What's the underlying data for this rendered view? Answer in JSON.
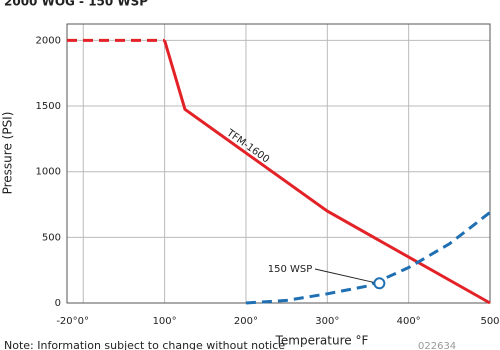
{
  "chart_data": {
    "type": "line",
    "title": "2000 WOG - 150 WSP",
    "xlabel": "Temperature °F",
    "ylabel": "Pressure (PSI)",
    "xlim": [
      -20,
      500
    ],
    "ylim": [
      0,
      2125
    ],
    "xticks": [
      {
        "value": -20,
        "label": "-20°"
      },
      {
        "value": 0,
        "label": "0°"
      },
      {
        "value": 100,
        "label": "100°"
      },
      {
        "value": 200,
        "label": "200°"
      },
      {
        "value": 300,
        "label": "300°"
      },
      {
        "value": 400,
        "label": "400°"
      },
      {
        "value": 500,
        "label": "500"
      }
    ],
    "yticks": [
      0,
      500,
      1000,
      1500,
      2000
    ],
    "grid": true,
    "series": [
      {
        "color": "#e32228",
        "dashed": true,
        "x": [
          -20,
          100
        ],
        "values": [
          2000,
          2000
        ]
      },
      {
        "name": "TFM-1600",
        "color": "#e32228",
        "dashed": false,
        "x": [
          100,
          125,
          300,
          500
        ],
        "values": [
          2000,
          1475,
          700,
          0
        ]
      },
      {
        "color": "#1f6fb3",
        "dashed": true,
        "x": [
          200,
          250,
          300,
          350,
          400,
          450,
          500
        ],
        "values": [
          0,
          20,
          70,
          130,
          270,
          450,
          690
        ]
      }
    ],
    "annotation": {
      "text": "150 WSP",
      "x": 364,
      "y": 150
    },
    "note": "Note: Information subject to change without notice",
    "code": "022634"
  }
}
